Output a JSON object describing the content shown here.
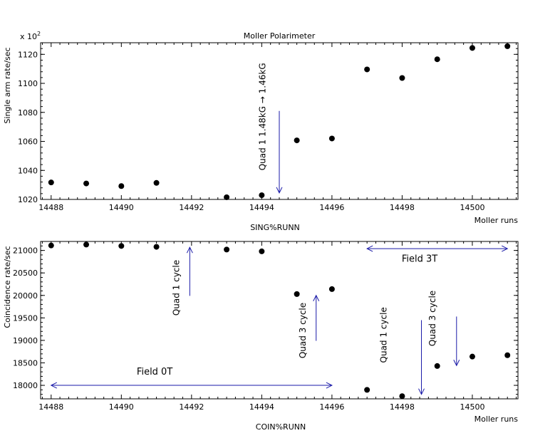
{
  "chart_data": [
    {
      "type": "scatter",
      "title": "Moller Polarimeter",
      "xlabel": "Moller runs",
      "ylabel": "Single arm rate/sec",
      "scale_label": "x 10",
      "scale_exponent": "2",
      "subtitle": "SING%RUNN",
      "xlim": [
        14487.7,
        14501.3
      ],
      "ylim": [
        1020,
        1128
      ],
      "x_ticks": [
        14488,
        14490,
        14492,
        14494,
        14496,
        14498,
        14500
      ],
      "y_ticks": [
        1020,
        1040,
        1060,
        1080,
        1100,
        1120
      ],
      "marker_color": "#000000",
      "annotation_color": "#1a1aa8",
      "points": [
        {
          "x": 14488,
          "y": 1031.7
        },
        {
          "x": 14489,
          "y": 1031.0
        },
        {
          "x": 14490,
          "y": 1029.2
        },
        {
          "x": 14491,
          "y": 1031.4
        },
        {
          "x": 14493,
          "y": 1021.5
        },
        {
          "x": 14494,
          "y": 1022.9
        },
        {
          "x": 14495,
          "y": 1060.7
        },
        {
          "x": 14496,
          "y": 1062.0
        },
        {
          "x": 14497,
          "y": 1109.6
        },
        {
          "x": 14498,
          "y": 1103.7
        },
        {
          "x": 14499,
          "y": 1116.6
        },
        {
          "x": 14500,
          "y": 1124.4
        },
        {
          "x": 14501,
          "y": 1125.6
        }
      ],
      "annotations": [
        {
          "text": "Quad 1 1.48kG → 1.46kG",
          "kind": "arrow-down",
          "x": 14494.5,
          "y_top": 1081,
          "y_bottom": 1024.5,
          "text_x": 14494.1,
          "text_y": 1040
        }
      ]
    },
    {
      "type": "scatter",
      "title": "",
      "xlabel": "Moller runs",
      "ylabel": "Coincidence rate/sec",
      "subtitle": "COIN%RUNN",
      "xlim": [
        14487.7,
        14501.3
      ],
      "ylim": [
        17700,
        21200
      ],
      "x_ticks": [
        14488,
        14490,
        14492,
        14494,
        14496,
        14498,
        14500
      ],
      "y_ticks": [
        18000,
        18500,
        19000,
        19500,
        20000,
        20500,
        21000
      ],
      "marker_color": "#000000",
      "annotation_color": "#1a1aa8",
      "points": [
        {
          "x": 14488,
          "y": 21110
        },
        {
          "x": 14489,
          "y": 21130
        },
        {
          "x": 14490,
          "y": 21100
        },
        {
          "x": 14491,
          "y": 21080
        },
        {
          "x": 14493,
          "y": 21020
        },
        {
          "x": 14494,
          "y": 20980
        },
        {
          "x": 14495,
          "y": 20030
        },
        {
          "x": 14496,
          "y": 20140
        },
        {
          "x": 14497,
          "y": 17900
        },
        {
          "x": 14498,
          "y": 17760
        },
        {
          "x": 14499,
          "y": 18430
        },
        {
          "x": 14500,
          "y": 18640
        },
        {
          "x": 14501,
          "y": 18670
        }
      ],
      "annotations": [
        {
          "text": "Quad 1 cycle",
          "kind": "arrow-up",
          "x": 14491.95,
          "y_top": 21070,
          "y_bottom": 19990,
          "text_x": 14491.65,
          "text_y": 19550
        },
        {
          "text": "Quad 3 cycle",
          "kind": "arrow-up",
          "x": 14495.55,
          "y_top": 20000,
          "y_bottom": 18990,
          "text_x": 14495.25,
          "text_y": 18600
        },
        {
          "text": "Quad 1 cycle",
          "kind": "arrow-down",
          "x": 14498.55,
          "y_top": 19450,
          "y_bottom": 17800,
          "text_x": 14497.55,
          "text_y": 18500
        },
        {
          "text": "Quad 3 cycle",
          "kind": "arrow-down",
          "x": 14499.55,
          "y_top": 19530,
          "y_bottom": 18440,
          "text_x": 14498.95,
          "text_y": 18870
        },
        {
          "text": "Field 3T",
          "kind": "double-arrow",
          "x1": 14497,
          "x2": 14501,
          "y": 21040,
          "text_x": 14498.5,
          "text_y": 20750
        },
        {
          "text": "Field 0T",
          "kind": "double-arrow",
          "x1": 14488,
          "x2": 14496,
          "y": 18000,
          "text_x": 14490.95,
          "text_y": 18240
        }
      ]
    }
  ]
}
